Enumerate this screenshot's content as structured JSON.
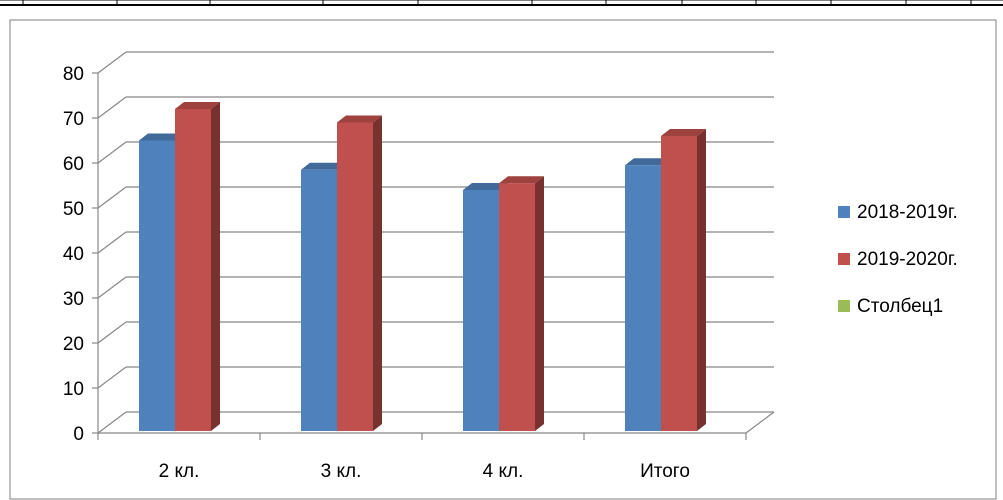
{
  "chart_data": {
    "type": "bar",
    "categories": [
      "2 кл.",
      "3 кл.",
      "4 кл.",
      "Итого"
    ],
    "series": [
      {
        "name": "2018-2019г.",
        "values": [
          65,
          58.5,
          54,
          59.5
        ],
        "color": "#4F81BD"
      },
      {
        "name": "2019-2020г.",
        "values": [
          72,
          69,
          55.5,
          66
        ],
        "color": "#C0504D"
      },
      {
        "name": "Столбец1",
        "values": [
          0,
          0,
          0,
          0
        ],
        "color": "#9BBB59"
      }
    ],
    "ylim": [
      0,
      80
    ],
    "yticks": [
      "0",
      "10",
      "20",
      "30",
      "40",
      "50",
      "60",
      "70",
      "80"
    ],
    "grid": true,
    "three_d": true,
    "legend_position": "right"
  }
}
